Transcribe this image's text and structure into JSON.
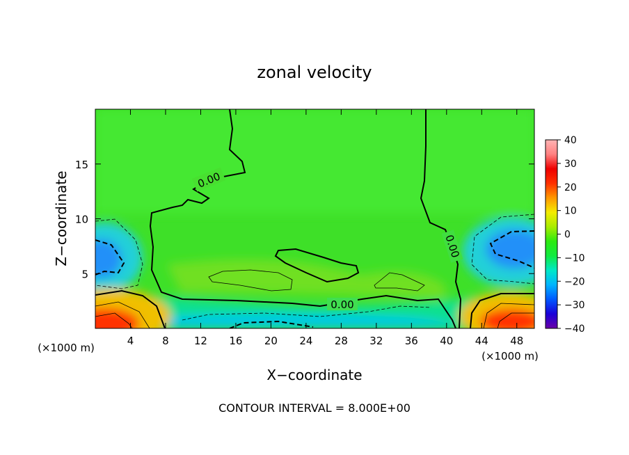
{
  "chart_data": {
    "type": "heatmap",
    "title": "zonal velocity",
    "xlabel": "X−coordinate",
    "ylabel": "Z−coordinate",
    "x_unit_left": "(×1000 m)",
    "x_unit_right": "(×1000 m)",
    "footer": "CONTOUR INTERVAL = 8.000E+00",
    "xlim": [
      0,
      50
    ],
    "ylim": [
      0,
      20
    ],
    "x_ticks": [
      4,
      8,
      12,
      16,
      20,
      24,
      28,
      32,
      36,
      40,
      44,
      48
    ],
    "x_tick_labels": [
      "4",
      "8",
      "12",
      "16",
      "20",
      "24",
      "28",
      "32",
      "36",
      "40",
      "44",
      "48"
    ],
    "y_ticks": [
      5,
      10,
      15
    ],
    "y_tick_labels": [
      "5",
      "10",
      "15"
    ],
    "contour_label": "0.00",
    "colorbar": {
      "min": -40,
      "max": 40,
      "ticks": [
        40,
        30,
        20,
        10,
        0,
        -10,
        -20,
        -30,
        -40
      ],
      "tick_labels": [
        "40",
        "30",
        "20",
        "10",
        "0",
        "−10",
        "−20",
        "−30",
        "−40"
      ],
      "colors": [
        "#6a00a8",
        "#1a00d8",
        "#0058ff",
        "#00b4ff",
        "#00e8c8",
        "#10ea40",
        "#2cea10",
        "#a8ec00",
        "#f4ec00",
        "#ff9800",
        "#ff3000",
        "#ee0000",
        "#ff8080",
        "#ffb4b4"
      ]
    },
    "value_field_description_points": [
      {
        "x": 2,
        "z": 0.5,
        "value": 36
      },
      {
        "x": 48,
        "z": 0.8,
        "value": 34
      },
      {
        "x": 2,
        "z": 6.5,
        "value": -16
      },
      {
        "x": 48,
        "z": 7.5,
        "value": -18
      },
      {
        "x": 19,
        "z": 0.3,
        "value": -12
      },
      {
        "x": 25,
        "z": 12,
        "value": 4
      },
      {
        "x": 15,
        "z": 4.3,
        "value": 7
      },
      {
        "x": 34,
        "z": 4.4,
        "value": 7
      }
    ]
  }
}
